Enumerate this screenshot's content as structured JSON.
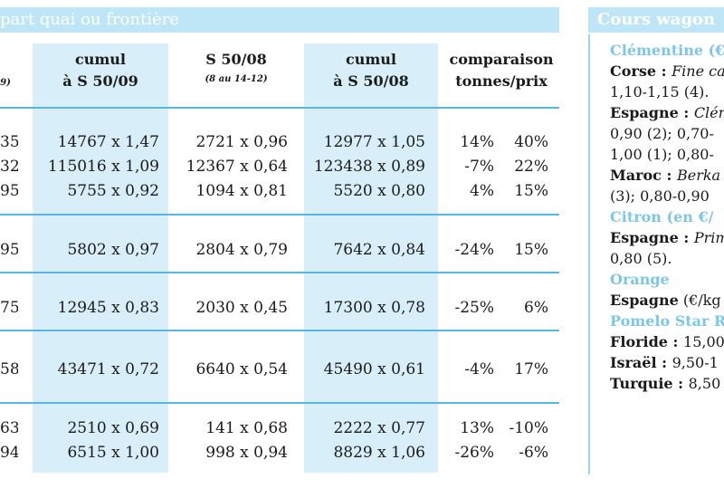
{
  "left": {
    "title": "part quai ou frontière",
    "headers": [
      {
        "main": "cumul",
        "main2": "à S 50/09",
        "sub": ""
      },
      {
        "main": "S 50/08",
        "main2": "",
        "sub": "(8 au 14-12)"
      },
      {
        "main": "cumul",
        "main2": "à S 50/08",
        "sub": ""
      },
      {
        "main": "comparaison",
        "main2": "tonnes/prix",
        "sub": ""
      }
    ],
    "partial_header_sub": "9)",
    "rows": [
      {
        "c0": "35",
        "c1": "14767 x 1,47",
        "c2": "2721 x 0,96",
        "c3": "12977 x 1,05",
        "c4": "14%",
        "c5": "40%"
      },
      {
        "c0": "32",
        "c1": "115016 x 1,09",
        "c2": "12367 x 0,64",
        "c3": "123438 x 0,89",
        "c4": "-7%",
        "c5": "22%"
      },
      {
        "c0": "95",
        "c1": "5755 x 0,92",
        "c2": "1094 x 0,81",
        "c3": "5520 x 0,80",
        "c4": "4%",
        "c5": "15%"
      },
      {
        "c0": "95",
        "c1": "5802 x 0,97",
        "c2": "2804 x 0,79",
        "c3": "7642 x 0,84",
        "c4": "-24%",
        "c5": "15%"
      },
      {
        "c0": "75",
        "c1": "12945 x 0,83",
        "c2": "2030 x 0,45",
        "c3": "17300 x 0,78",
        "c4": "-25%",
        "c5": "6%"
      },
      {
        "c0": "58",
        "c1": "43471 x 0,72",
        "c2": "6640 x 0,54",
        "c3": "45490 x 0,61",
        "c4": "-4%",
        "c5": "17%"
      },
      {
        "c0": "63",
        "c1": "2510 x 0,69",
        "c2": "141 x 0,68",
        "c3": "2222 x 0,77",
        "c4": "13%",
        "c5": "-10%"
      },
      {
        "c0": "94",
        "c1": "6515 x 1,00",
        "c2": "998 x 0,94",
        "c3": "8829 x 1,06",
        "c4": "-26%",
        "c5": "-6%"
      }
    ]
  },
  "right": {
    "title": "Cours wagon",
    "lines": [
      {
        "style": "blue",
        "text": "Clémentine (€"
      },
      {
        "style": "mixed",
        "bold": "Corse : ",
        "italic": "Fine ca",
        "plain": ""
      },
      {
        "style": "plain",
        "text": "1,10-1,15 (4)."
      },
      {
        "style": "mixed",
        "bold": "Espagne : ",
        "italic": "Clém",
        "plain": ""
      },
      {
        "style": "plain",
        "text": "0,90 (2); 0,70-"
      },
      {
        "style": "plain",
        "text": "1,00 (1); 0,80-"
      },
      {
        "style": "mixed",
        "bold": "Maroc : ",
        "italic": "Berka",
        "plain": ""
      },
      {
        "style": "plain",
        "text": "(3); 0,80-0,90"
      },
      {
        "style": "blue",
        "text": "Citron (en €/"
      },
      {
        "style": "mixed",
        "bold": "Espagne : ",
        "italic": "Prim",
        "plain": ""
      },
      {
        "style": "plain",
        "text": "0,80 (5)."
      },
      {
        "style": "blue",
        "text": "Orange"
      },
      {
        "style": "mixed",
        "bold": "Espagne",
        "italic": "",
        "plain": " (€/kg"
      },
      {
        "style": "blue",
        "text": "Pomelo Star R"
      },
      {
        "style": "mixed",
        "bold": "Floride : ",
        "italic": "",
        "plain": "15,00"
      },
      {
        "style": "mixed",
        "bold": "Israël : ",
        "italic": "",
        "plain": "9,50-1"
      },
      {
        "style": "mixed",
        "bold": "Turquie : ",
        "italic": "",
        "plain": "8,50"
      }
    ]
  },
  "colors": {
    "header_bg": "#bfe6f6",
    "band_bg": "#d8eef8",
    "rule": "#55b7e2",
    "accent_text": "#7cc6e9"
  }
}
